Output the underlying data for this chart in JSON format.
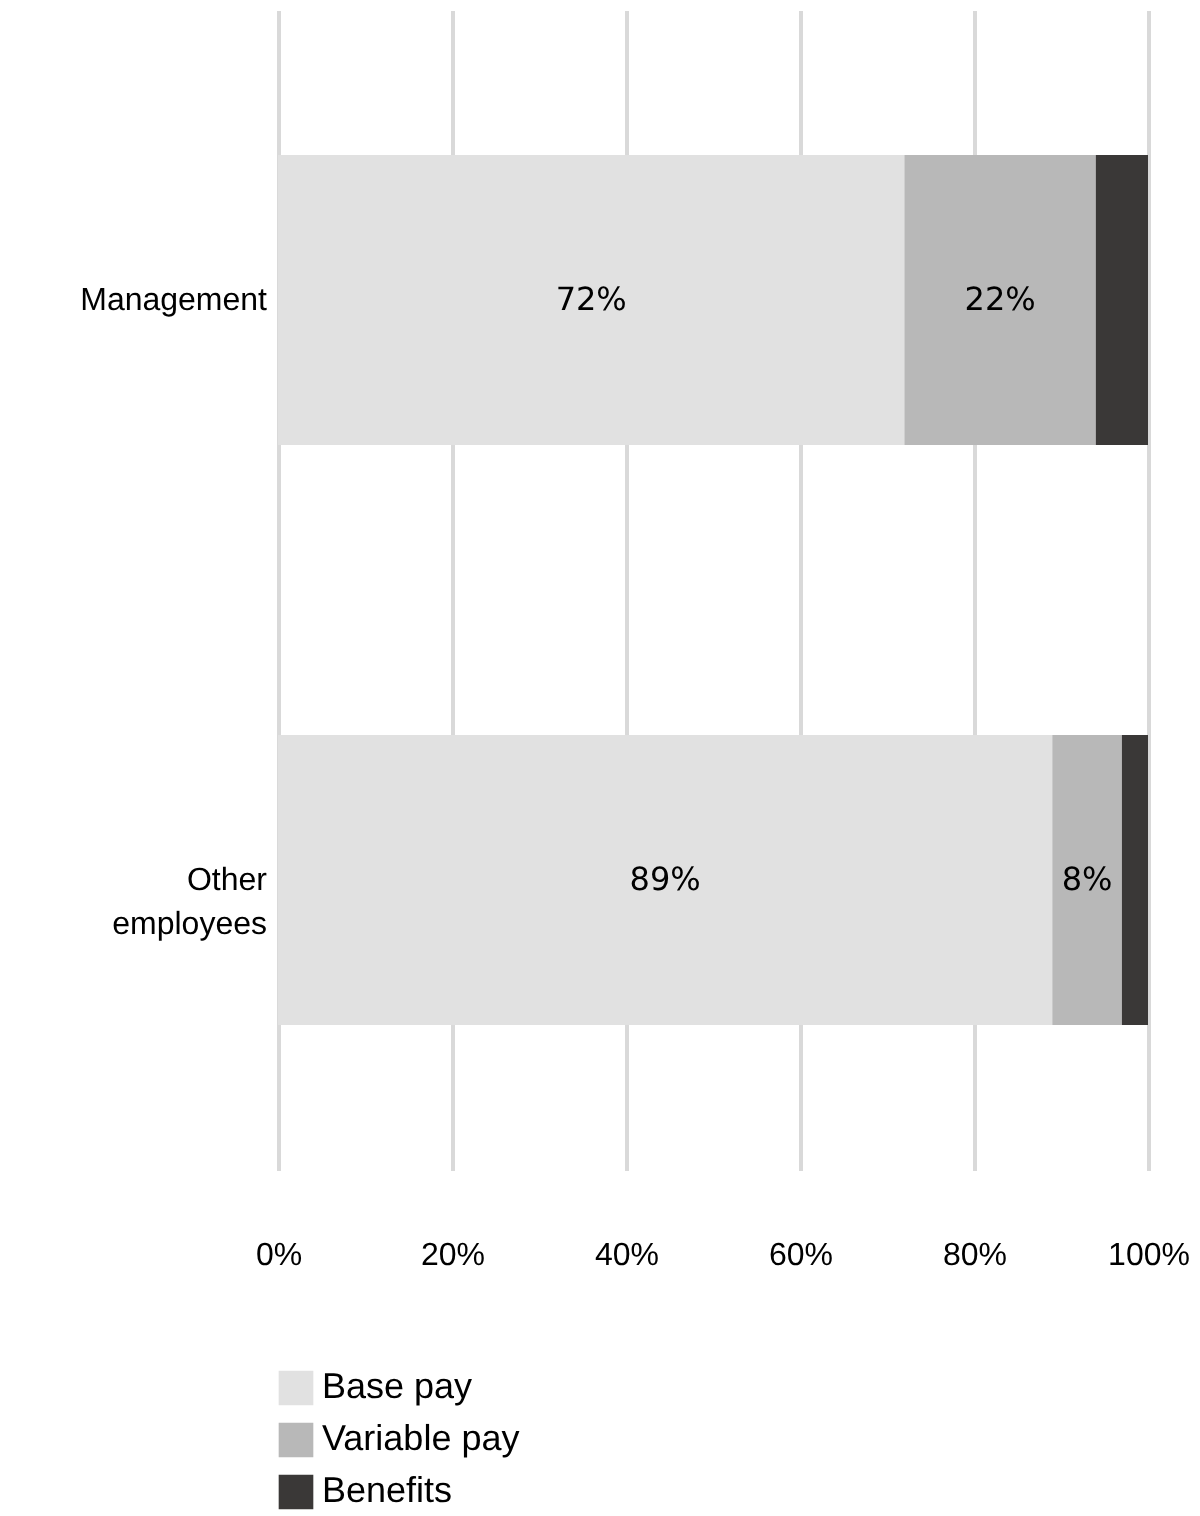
{
  "chart_data": {
    "type": "bar",
    "orientation": "horizontal",
    "stacked": true,
    "categories": [
      "Management",
      "Other employees"
    ],
    "series": [
      {
        "name": "Base pay",
        "color": "#e1e1e1",
        "values": [
          72,
          89
        ],
        "value_labels": [
          "72%",
          "89%"
        ]
      },
      {
        "name": "Variable pay",
        "color": "#b8b8b8",
        "values": [
          22,
          8
        ],
        "value_labels": [
          "22%",
          "8%"
        ]
      },
      {
        "name": "Benefits",
        "color": "#3a3837",
        "values": [
          6,
          3
        ],
        "value_labels": [
          null,
          null
        ]
      }
    ],
    "xlim": [
      0,
      100
    ],
    "xticks": [
      {
        "value": 0,
        "label": "0%"
      },
      {
        "value": 20,
        "label": "20%"
      },
      {
        "value": 40,
        "label": "40%"
      },
      {
        "value": 60,
        "label": "60%"
      },
      {
        "value": 80,
        "label": "80%"
      },
      {
        "value": 100,
        "label": "100%"
      }
    ],
    "grid": "x",
    "legend": "bottom"
  }
}
